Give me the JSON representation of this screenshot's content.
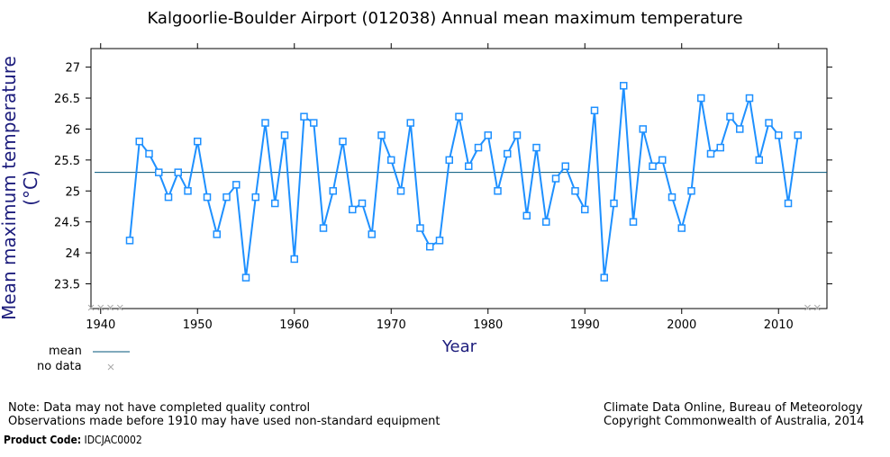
{
  "chart_data": {
    "type": "line",
    "title": "Kalgoorlie-Boulder Airport (012038) Annual mean maximum temperature",
    "xlabel": "Year",
    "ylabel": "Mean maximum temperature (°C)",
    "xlim": [
      1939,
      2015
    ],
    "ylim": [
      23.1,
      27.3
    ],
    "x_ticks": [
      1940,
      1950,
      1960,
      1970,
      1980,
      1990,
      2000,
      2010
    ],
    "y_ticks": [
      23.5,
      24,
      24.5,
      25,
      25.5,
      26,
      26.5,
      27
    ],
    "y_tick_labels": [
      "23.5",
      "24",
      "24.5",
      "25",
      "25.5",
      "26",
      "26.5",
      "27"
    ],
    "mean": 25.3,
    "no_data_years": [
      1939,
      1940,
      1941,
      1942,
      2013,
      2014
    ],
    "grid": false,
    "series": [
      {
        "name": "",
        "color": "#1e90ff",
        "x": [
          1943,
          1944,
          1945,
          1946,
          1947,
          1948,
          1949,
          1950,
          1951,
          1952,
          1953,
          1954,
          1955,
          1956,
          1957,
          1958,
          1959,
          1960,
          1961,
          1962,
          1963,
          1964,
          1965,
          1966,
          1967,
          1968,
          1969,
          1970,
          1971,
          1972,
          1973,
          1974,
          1975,
          1976,
          1977,
          1978,
          1979,
          1980,
          1981,
          1982,
          1983,
          1984,
          1985,
          1986,
          1987,
          1988,
          1989,
          1990,
          1991,
          1992,
          1993,
          1994,
          1995,
          1996,
          1997,
          1998,
          1999,
          2000,
          2001,
          2002,
          2003,
          2004,
          2005,
          2006,
          2007,
          2008,
          2009,
          2010,
          2011,
          2012
        ],
        "y": [
          24.2,
          25.8,
          25.6,
          25.3,
          24.9,
          25.3,
          25.0,
          25.8,
          24.9,
          24.3,
          24.9,
          25.1,
          23.6,
          24.9,
          26.1,
          24.8,
          25.9,
          23.9,
          26.2,
          26.1,
          24.4,
          25.0,
          25.8,
          24.7,
          24.8,
          24.3,
          25.9,
          25.5,
          25.0,
          26.1,
          24.4,
          24.1,
          24.2,
          25.5,
          26.2,
          25.4,
          25.7,
          25.9,
          25.0,
          25.6,
          25.9,
          24.6,
          25.7,
          24.5,
          25.2,
          25.4,
          25.0,
          24.7,
          26.3,
          23.6,
          24.8,
          26.7,
          24.5,
          26.0,
          25.4,
          25.5,
          24.9,
          24.4,
          25.0,
          26.5,
          25.6,
          25.7,
          26.2,
          26.0,
          26.5,
          25.5,
          26.1,
          25.9,
          24.8,
          25.9
        ]
      }
    ]
  },
  "legend": {
    "mean_label": "mean",
    "nodata_label": "no data",
    "mean_color": "#00557a",
    "nodata_color": "#a8a8a8"
  },
  "notes": {
    "line1": "Note: Data may not have completed quality control",
    "line2": "Observations made before 1910 may have used non-standard equipment"
  },
  "source": {
    "line1": "Climate Data Online, Bureau of Meteorology",
    "line2": "Copyright Commonwealth of Australia, 2014"
  },
  "product_code": {
    "label": "Product Code:",
    "value": "IDCJAC0002"
  }
}
